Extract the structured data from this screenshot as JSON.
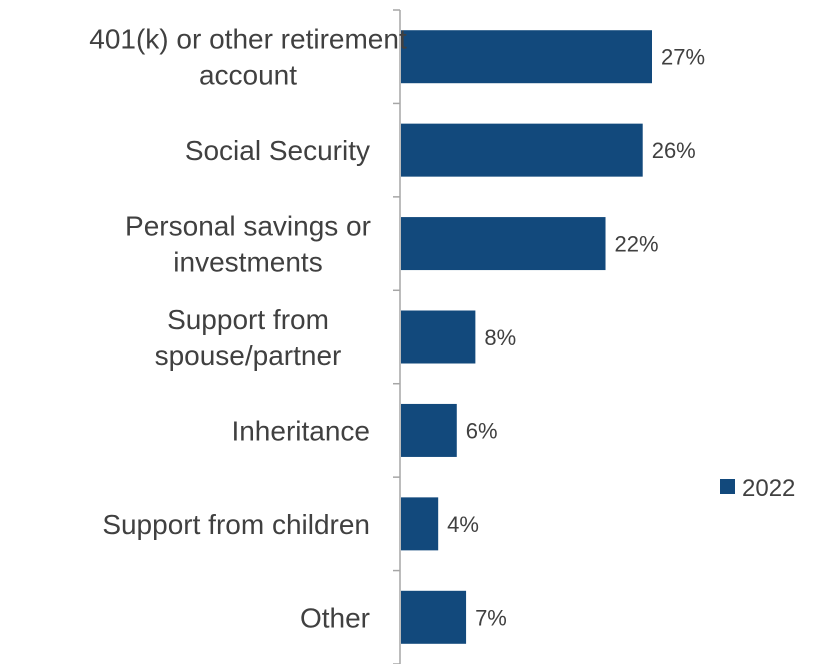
{
  "chart_data": {
    "type": "bar",
    "orientation": "horizontal",
    "categories": [
      [
        "401(k) or other retirement",
        "account"
      ],
      [
        "Social Security"
      ],
      [
        "Personal savings or",
        "investments"
      ],
      [
        "Support from",
        "spouse/partner"
      ],
      [
        "Inheritance"
      ],
      [
        "Support from children"
      ],
      [
        "Other"
      ]
    ],
    "series": [
      {
        "name": "2022",
        "values": [
          27,
          26,
          22,
          8,
          6,
          4,
          7
        ],
        "labels": [
          "27%",
          "26%",
          "22%",
          "8%",
          "6%",
          "4%",
          "7%"
        ],
        "color": "#12497C"
      }
    ],
    "xlim": [
      0,
      45
    ],
    "grid": false,
    "legend": "right",
    "axis_color": "#A6A6A6",
    "text_color": "#404040"
  }
}
